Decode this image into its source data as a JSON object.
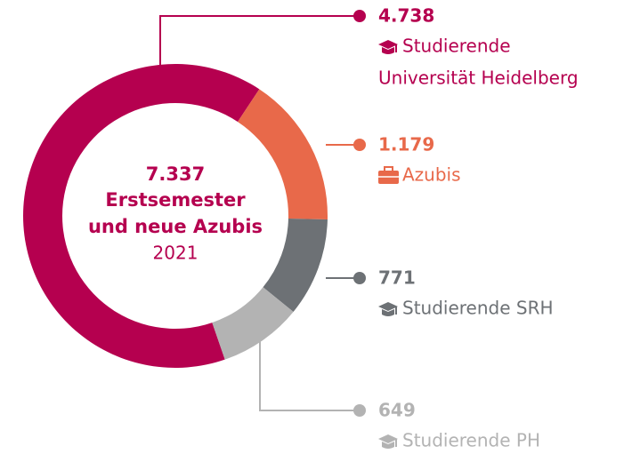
{
  "chart_data": {
    "type": "pie",
    "donut": true,
    "center_text": [
      "7.337",
      "Erstsemester",
      "und neue Azubis"
    ],
    "subtitle": "2021",
    "series": [
      {
        "name": [
          "Studierende",
          "Universität Heidelberg"
        ],
        "color": "#b5004f",
        "values": [
          4738
        ],
        "value_labels": [
          "4.738"
        ]
      },
      {
        "name": [
          "Azubis"
        ],
        "color": "#e8694a",
        "values": [
          1179
        ],
        "value_labels": [
          "1.179"
        ]
      },
      {
        "name": [
          "Studierende SRH"
        ],
        "color": "#6d7175",
        "values": [
          771
        ],
        "value_labels": [
          "771"
        ]
      },
      {
        "name": [
          "Studierende PH"
        ],
        "color": "#b3b3b3",
        "values": [
          649
        ],
        "value_labels": [
          "649"
        ]
      }
    ]
  }
}
